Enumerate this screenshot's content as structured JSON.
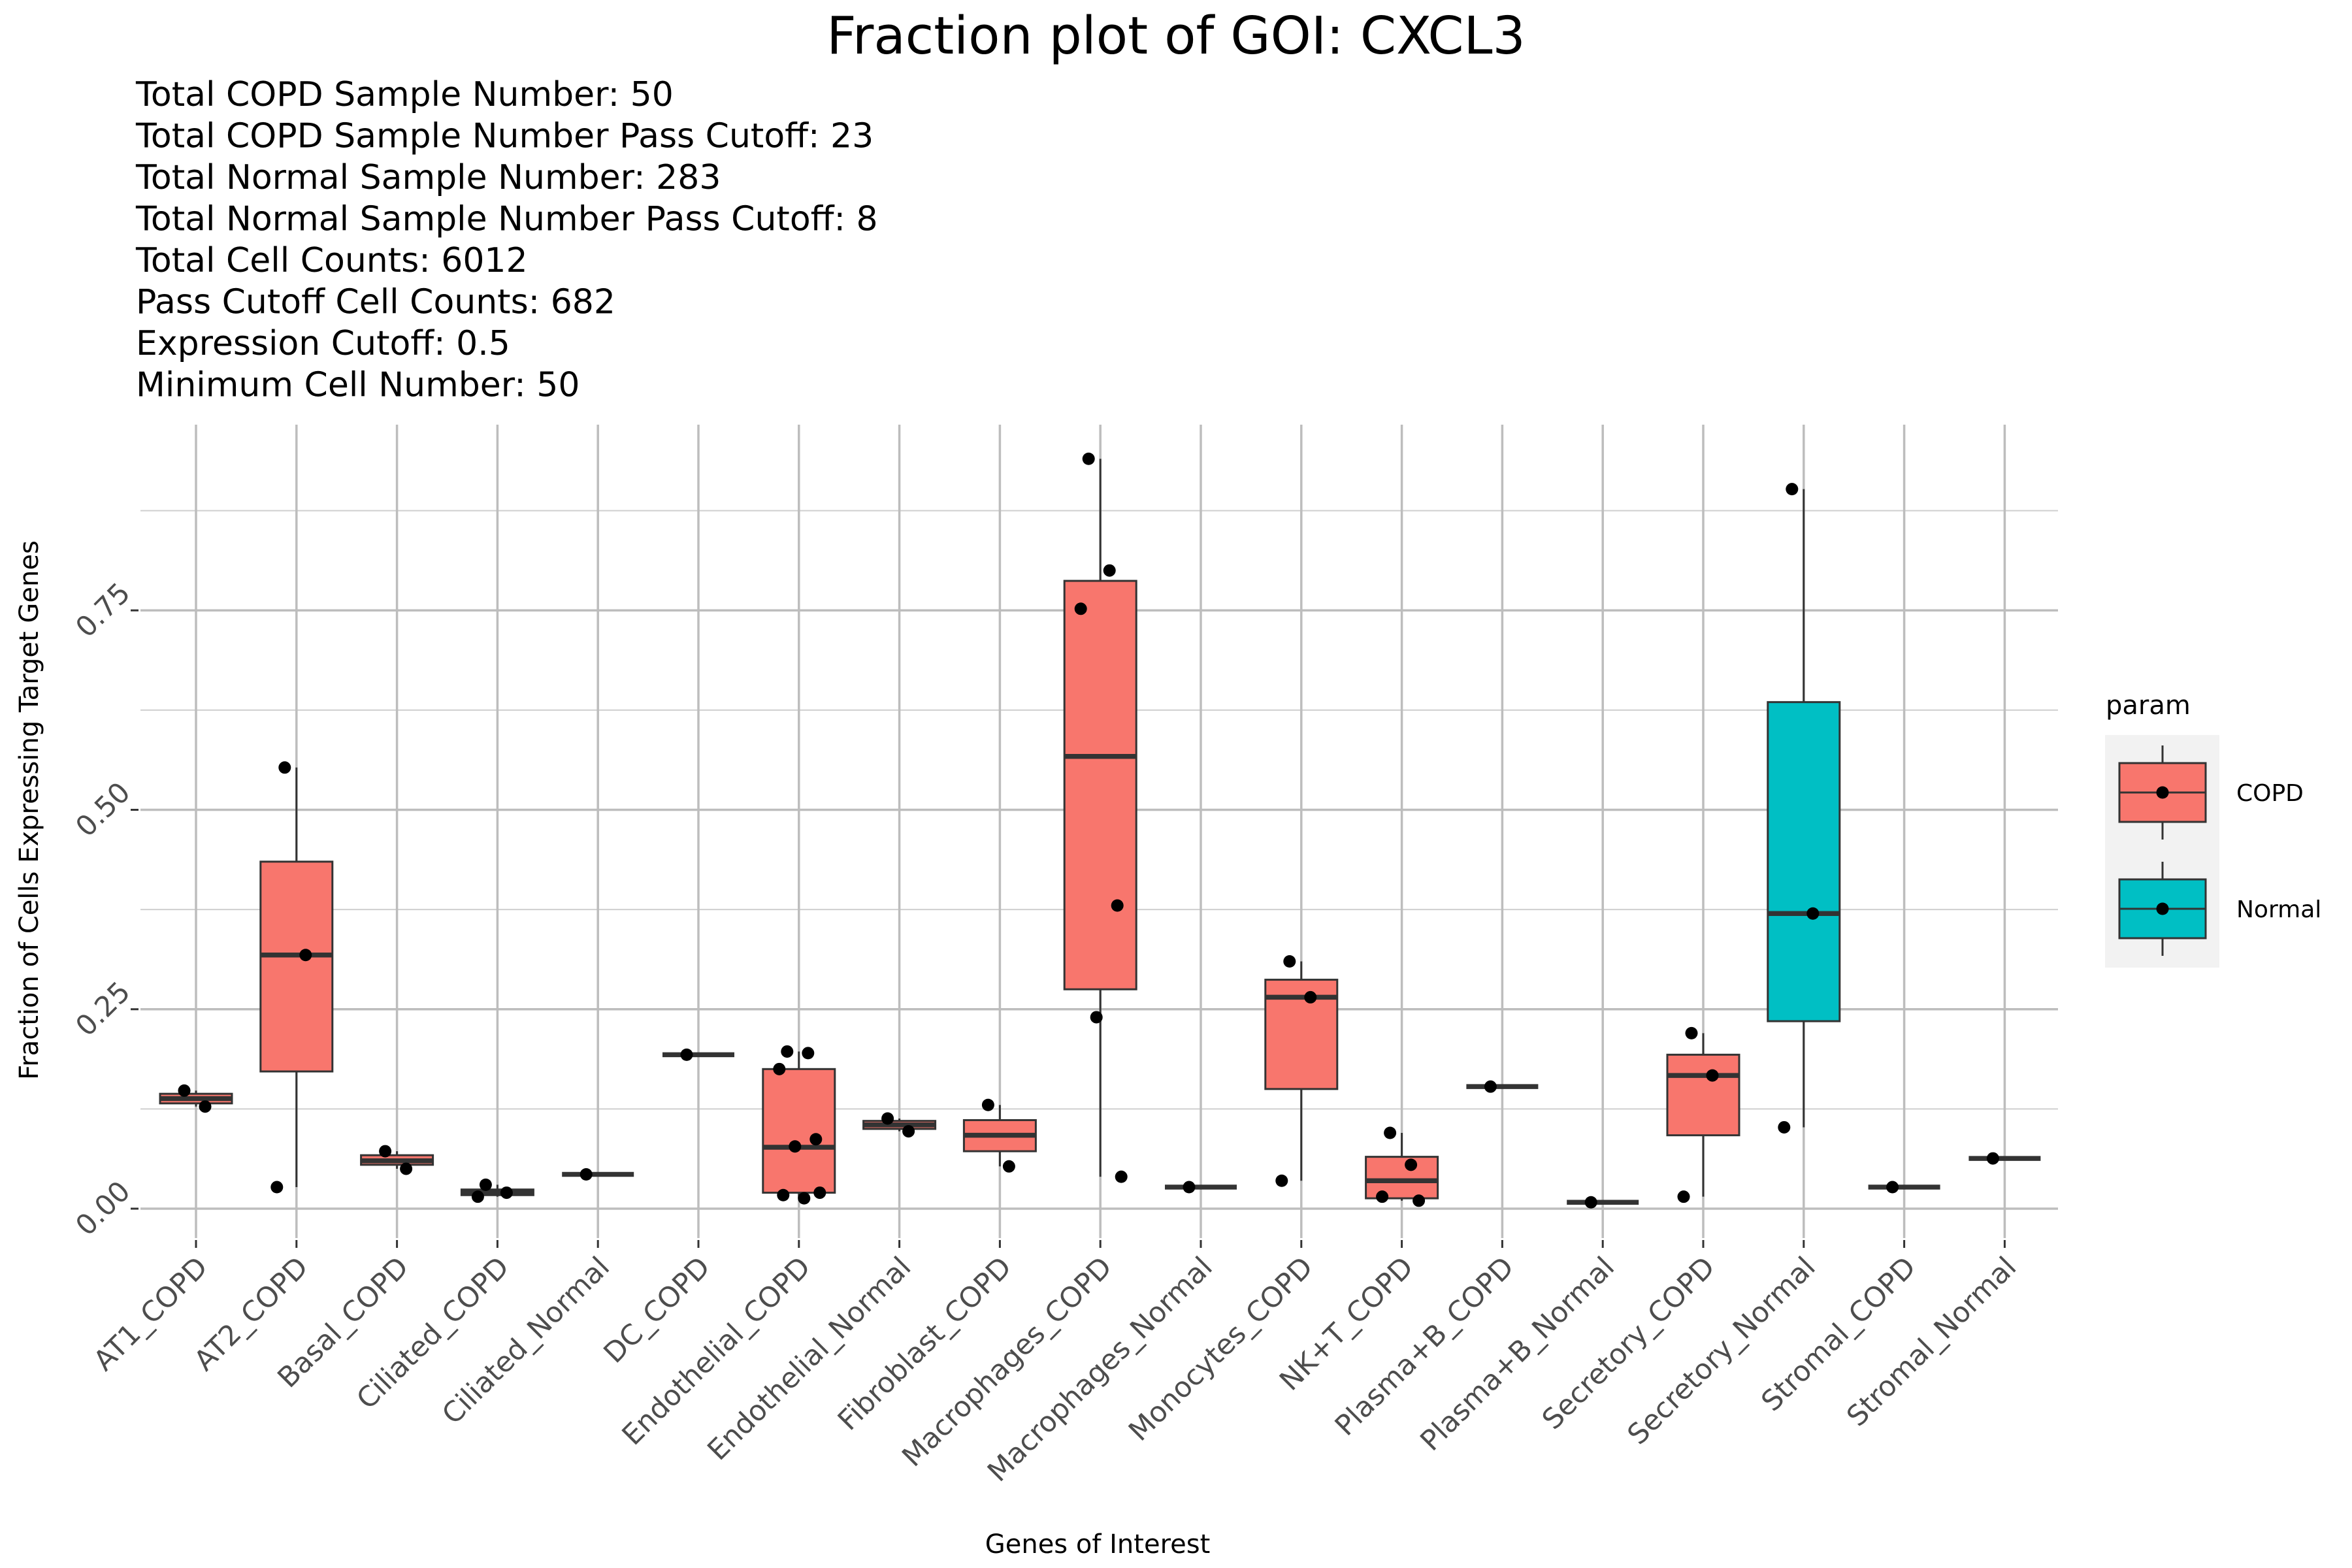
{
  "chart_data": {
    "type": "box",
    "title": "Fraction plot of GOI: CXCL3",
    "subtitle_lines": [
      "Total COPD Sample Number: 50",
      "Total COPD Sample Number Pass Cutoff: 23",
      "Total Normal Sample Number: 283",
      "Total Normal Sample Number Pass Cutoff: 8",
      "Total Cell Counts: 6012",
      "Pass Cutoff Cell Counts: 682",
      "Expression Cutoff: 0.5",
      "Minimum Cell Number: 50"
    ],
    "xlabel": "Genes of Interest",
    "ylabel": "Fraction of Cells Expressing Target Genes",
    "ylim": [
      -0.005,
      0.96
    ],
    "y_ticks": [
      0,
      0.25,
      0.5,
      0.75
    ],
    "y_tick_labels": [
      "0.00",
      "0.25",
      "0.50",
      "0.75"
    ],
    "grid": true,
    "legend": {
      "title": "param",
      "position": "right",
      "entries": [
        {
          "label": "COPD",
          "color": "#F8766D"
        },
        {
          "label": "Normal",
          "color": "#00BFC4"
        }
      ]
    },
    "categories": [
      "AT1_COPD",
      "AT2_COPD",
      "Basal_COPD",
      "Ciliated_COPD",
      "Ciliated_Normal",
      "DC_COPD",
      "Endothelial_COPD",
      "Endothelial_Normal",
      "Fibroblast_COPD",
      "Macrophages_COPD",
      "Macrophages_Normal",
      "Monocytes_COPD",
      "NK+T_COPD",
      "Plasma+B_COPD",
      "Plasma+B_Normal",
      "Secretory_COPD",
      "Secretory_Normal",
      "Stromal_COPD",
      "Stromal_Normal"
    ],
    "boxes": [
      {
        "category": "AT1_COPD",
        "group": "COPD",
        "position": 0,
        "min": 0.128,
        "q1": 0.132,
        "median": 0.138,
        "q3": 0.144,
        "max": 0.148,
        "points": [
          0.148,
          0.128
        ]
      },
      {
        "category": "AT2_COPD",
        "group": "COPD",
        "position": 1,
        "min": 0.027,
        "q1": 0.172,
        "median": 0.318,
        "q3": 0.435,
        "max": 0.553,
        "points": [
          0.553,
          0.318,
          0.027
        ]
      },
      {
        "category": "Basal_COPD",
        "group": "COPD",
        "position": 2,
        "min": 0.05,
        "q1": 0.055,
        "median": 0.06,
        "q3": 0.067,
        "max": 0.072,
        "points": [
          0.072,
          0.05
        ]
      },
      {
        "category": "Ciliated_COPD",
        "group": "COPD",
        "position": 3,
        "min": 0.015,
        "q1": 0.017,
        "median": 0.02,
        "q3": 0.024,
        "max": 0.03,
        "points": [
          0.03,
          0.02,
          0.015
        ]
      },
      {
        "category": "Ciliated_Normal",
        "group": "COPD",
        "position": 4,
        "min": 0.043,
        "q1": 0.043,
        "median": 0.043,
        "q3": 0.043,
        "max": 0.043,
        "points": [
          0.043
        ]
      },
      {
        "category": "DC_COPD",
        "group": "COPD",
        "position": 5,
        "min": 0.193,
        "q1": 0.193,
        "median": 0.193,
        "q3": 0.193,
        "max": 0.193,
        "points": [
          0.193
        ]
      },
      {
        "category": "Endothelial_COPD",
        "group": "COPD",
        "position": 6,
        "min": 0.013,
        "q1": 0.02,
        "median": 0.077,
        "q3": 0.175,
        "max": 0.197,
        "points": [
          0.197,
          0.195,
          0.175,
          0.087,
          0.078,
          0.02,
          0.017,
          0.013
        ]
      },
      {
        "category": "Endothelial_Normal",
        "group": "COPD",
        "position": 7,
        "min": 0.097,
        "q1": 0.1,
        "median": 0.105,
        "q3": 0.11,
        "max": 0.113,
        "points": [
          0.113,
          0.097
        ]
      },
      {
        "category": "Fibroblast_COPD",
        "group": "COPD",
        "position": 8,
        "min": 0.053,
        "q1": 0.072,
        "median": 0.092,
        "q3": 0.111,
        "max": 0.13,
        "points": [
          0.13,
          0.053
        ]
      },
      {
        "category": "Macrophages_COPD",
        "group": "COPD",
        "position": 9,
        "min": 0.04,
        "q1": 0.275,
        "median": 0.567,
        "q3": 0.787,
        "max": 0.94,
        "points": [
          0.94,
          0.8,
          0.752,
          0.38,
          0.24,
          0.04
        ]
      },
      {
        "category": "Macrophages_Normal",
        "group": "COPD",
        "position": 10,
        "min": 0.027,
        "q1": 0.027,
        "median": 0.027,
        "q3": 0.027,
        "max": 0.027,
        "points": [
          0.027
        ]
      },
      {
        "category": "Monocytes_COPD",
        "group": "COPD",
        "position": 11,
        "min": 0.035,
        "q1": 0.15,
        "median": 0.265,
        "q3": 0.287,
        "max": 0.31,
        "points": [
          0.31,
          0.265,
          0.035
        ]
      },
      {
        "category": "NK+T_COPD",
        "group": "COPD",
        "position": 12,
        "min": 0.01,
        "q1": 0.013,
        "median": 0.035,
        "q3": 0.065,
        "max": 0.095,
        "points": [
          0.095,
          0.055,
          0.015,
          0.01
        ]
      },
      {
        "category": "Plasma+B_COPD",
        "group": "COPD",
        "position": 13,
        "min": 0.153,
        "q1": 0.153,
        "median": 0.153,
        "q3": 0.153,
        "max": 0.153,
        "points": [
          0.153
        ]
      },
      {
        "category": "Plasma+B_Normal",
        "group": "COPD",
        "position": 14,
        "min": 0.008,
        "q1": 0.008,
        "median": 0.008,
        "q3": 0.008,
        "max": 0.008,
        "points": [
          0.008
        ]
      },
      {
        "category": "Secretory_COPD",
        "group": "COPD",
        "position": 15,
        "min": 0.015,
        "q1": 0.092,
        "median": 0.167,
        "q3": 0.193,
        "max": 0.22,
        "points": [
          0.22,
          0.167,
          0.015
        ]
      },
      {
        "category": "Secretory_Normal",
        "group": "Normal",
        "position": 16,
        "min": 0.102,
        "q1": 0.235,
        "median": 0.37,
        "q3": 0.635,
        "max": 0.902,
        "points": [
          0.902,
          0.37,
          0.102
        ]
      },
      {
        "category": "Stromal_COPD",
        "group": "COPD",
        "position": 17,
        "min": 0.027,
        "q1": 0.027,
        "median": 0.027,
        "q3": 0.027,
        "max": 0.027,
        "points": [
          0.027
        ]
      },
      {
        "category": "Stromal_Normal",
        "group": "COPD",
        "position": 18,
        "min": 0.063,
        "q1": 0.063,
        "median": 0.063,
        "q3": 0.063,
        "max": 0.063,
        "points": [
          0.063
        ]
      }
    ]
  }
}
